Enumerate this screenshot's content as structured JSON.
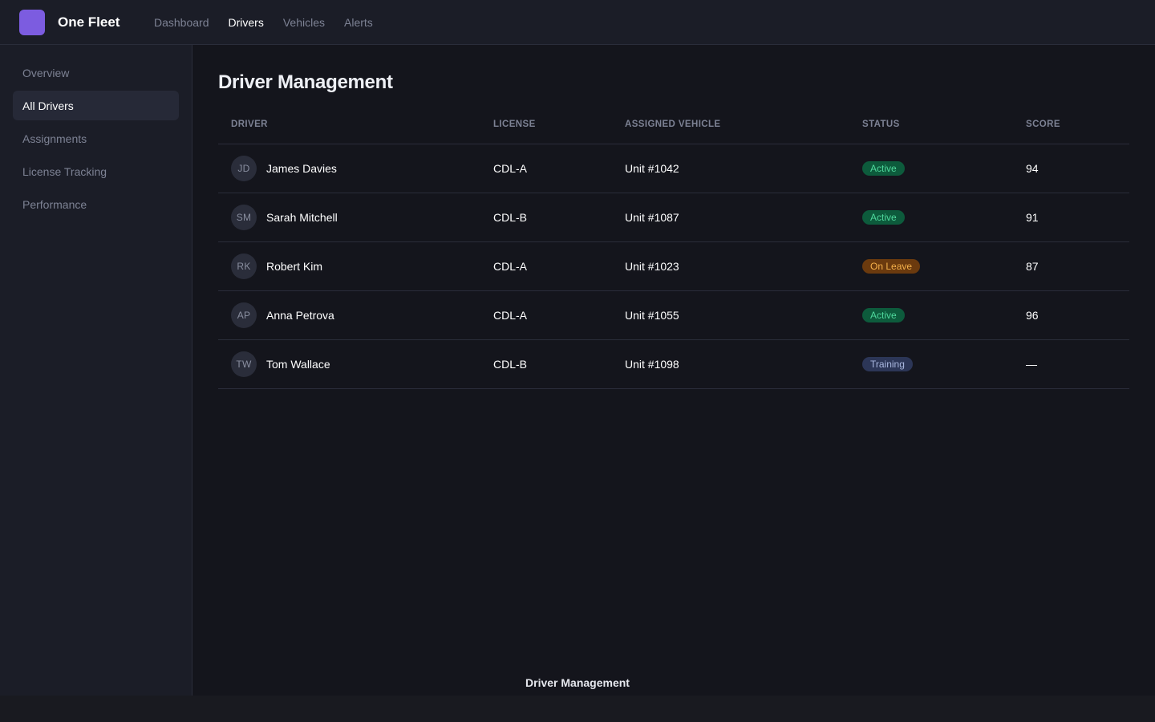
{
  "app": {
    "brand": "One Fleet",
    "accent": "#7c5ce0"
  },
  "topnav": {
    "items": [
      {
        "label": "Dashboard",
        "active": false
      },
      {
        "label": "Drivers",
        "active": true
      },
      {
        "label": "Vehicles",
        "active": false
      },
      {
        "label": "Alerts",
        "active": false
      }
    ]
  },
  "sidebar": {
    "items": [
      {
        "label": "Overview",
        "active": false
      },
      {
        "label": "All Drivers",
        "active": true
      },
      {
        "label": "Assignments",
        "active": false
      },
      {
        "label": "License Tracking",
        "active": false
      },
      {
        "label": "Performance",
        "active": false
      }
    ]
  },
  "main": {
    "title": "Driver Management",
    "table": {
      "columns": [
        "DRIVER",
        "LICENSE",
        "ASSIGNED VEHICLE",
        "STATUS",
        "SCORE"
      ],
      "rows": [
        {
          "initials": "JD",
          "name": "James Davies",
          "license": "CDL-A",
          "vehicle": "Unit #1042",
          "status": "Active",
          "status_type": "active",
          "score": "94"
        },
        {
          "initials": "SM",
          "name": "Sarah Mitchell",
          "license": "CDL-B",
          "vehicle": "Unit #1087",
          "status": "Active",
          "status_type": "active",
          "score": "91"
        },
        {
          "initials": "RK",
          "name": "Robert Kim",
          "license": "CDL-A",
          "vehicle": "Unit #1023",
          "status": "On Leave",
          "status_type": "leave",
          "score": "87"
        },
        {
          "initials": "AP",
          "name": "Anna Petrova",
          "license": "CDL-A",
          "vehicle": "Unit #1055",
          "status": "Active",
          "status_type": "active",
          "score": "96"
        },
        {
          "initials": "TW",
          "name": "Tom Wallace",
          "license": "CDL-B",
          "vehicle": "Unit #1098",
          "status": "Training",
          "status_type": "training",
          "score": "—"
        }
      ]
    }
  },
  "footer": {
    "label": "Driver Management"
  },
  "colors": {
    "active_badge_bg": "#0d5b3c",
    "active_badge_text": "#4fd89c",
    "leave_badge_bg": "#6b3a0e",
    "leave_badge_text": "#f4b04a",
    "training_badge_bg": "#2c3657",
    "training_badge_text": "#a9b7df"
  }
}
